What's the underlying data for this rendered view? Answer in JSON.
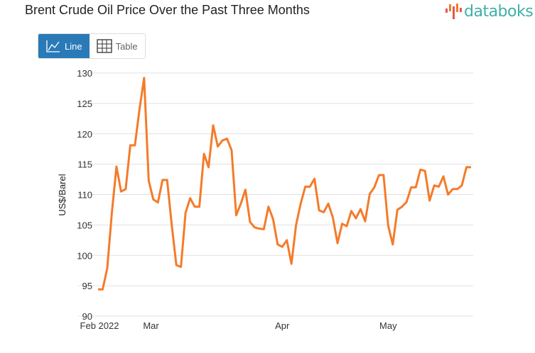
{
  "title": "Brent Crude Oil Price Over the Past Three Months",
  "logo": "databoks",
  "view_toggle": {
    "line_label": "Line",
    "table_label": "Table",
    "active": "Line"
  },
  "colors": {
    "line": "#f47b2a",
    "active_button": "#2a7ab8",
    "logo": "#3fb0a8",
    "grid": "#e0e0e0"
  },
  "chart_data": {
    "type": "line",
    "title": "Brent Crude Oil Price Over the Past Three Months",
    "ylabel": "US$/Barel",
    "xlabel": "",
    "ylim": [
      90,
      130
    ],
    "yticks": [
      90,
      95,
      100,
      105,
      110,
      115,
      120,
      125,
      130
    ],
    "grid": true,
    "x_ticks": [
      {
        "index": 0,
        "label": "Feb 2022"
      },
      {
        "index": 11.5,
        "label": "Mar"
      },
      {
        "index": 40,
        "label": "Apr"
      },
      {
        "index": 63,
        "label": "May"
      }
    ],
    "values": [
      94.4,
      94.4,
      97.9,
      107,
      114.6,
      110.5,
      110.9,
      118.1,
      118.1,
      124,
      129.2,
      112.3,
      109.2,
      108.7,
      112.4,
      112.4,
      105,
      98.4,
      98.1,
      107,
      109.4,
      108,
      108,
      116.7,
      114.5,
      121.4,
      117.9,
      118.9,
      119.2,
      117.3,
      106.6,
      108.5,
      110.8,
      105.5,
      104.6,
      104.4,
      104.3,
      108,
      106,
      101.8,
      101.4,
      102.5,
      98.6,
      105,
      108.5,
      111.3,
      111.3,
      112.6,
      107.4,
      107.1,
      108.5,
      106.2,
      102,
      105.2,
      104.8,
      107.3,
      106.1,
      107.6,
      105.6,
      110.1,
      111.2,
      113.2,
      113.2,
      104.9,
      101.8,
      107.5,
      108,
      108.8,
      111.2,
      111.2,
      114.1,
      113.9,
      109,
      111.5,
      111.3,
      113,
      110,
      110.9,
      110.9,
      111.5,
      114.5,
      114.5
    ]
  }
}
